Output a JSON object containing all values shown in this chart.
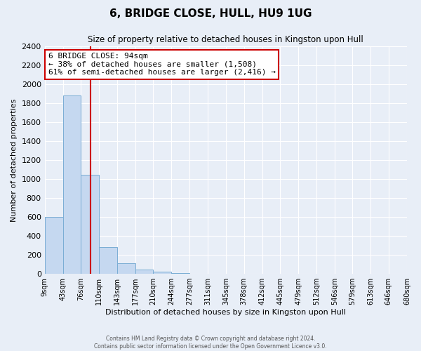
{
  "title": "6, BRIDGE CLOSE, HULL, HU9 1UG",
  "subtitle": "Size of property relative to detached houses in Kingston upon Hull",
  "xlabel": "Distribution of detached houses by size in Kingston upon Hull",
  "ylabel": "Number of detached properties",
  "bar_edges": [
    9,
    43,
    76,
    110,
    143,
    177,
    210,
    244,
    277,
    311,
    345,
    378,
    412,
    445,
    479,
    512,
    546,
    579,
    613,
    646,
    680
  ],
  "bar_heights": [
    600,
    1880,
    1040,
    280,
    115,
    45,
    20,
    5,
    0,
    0,
    0,
    0,
    0,
    0,
    0,
    0,
    0,
    0,
    0,
    0
  ],
  "bar_color": "#c5d8f0",
  "bar_edge_color": "#7aadd4",
  "property_line_x": 94,
  "property_line_color": "#cc0000",
  "ylim": [
    0,
    2400
  ],
  "yticks": [
    0,
    200,
    400,
    600,
    800,
    1000,
    1200,
    1400,
    1600,
    1800,
    2000,
    2200,
    2400
  ],
  "annotation_title": "6 BRIDGE CLOSE: 94sqm",
  "annotation_line1": "← 38% of detached houses are smaller (1,508)",
  "annotation_line2": "61% of semi-detached houses are larger (2,416) →",
  "annotation_box_color": "#ffffff",
  "annotation_box_edge": "#cc0000",
  "footer_line1": "Contains HM Land Registry data © Crown copyright and database right 2024.",
  "footer_line2": "Contains public sector information licensed under the Open Government Licence v3.0.",
  "background_color": "#e8eef7",
  "grid_color": "#ffffff",
  "tick_labels": [
    "9sqm",
    "43sqm",
    "76sqm",
    "110sqm",
    "143sqm",
    "177sqm",
    "210sqm",
    "244sqm",
    "277sqm",
    "311sqm",
    "345sqm",
    "378sqm",
    "412sqm",
    "445sqm",
    "479sqm",
    "512sqm",
    "546sqm",
    "579sqm",
    "613sqm",
    "646sqm",
    "680sqm"
  ]
}
